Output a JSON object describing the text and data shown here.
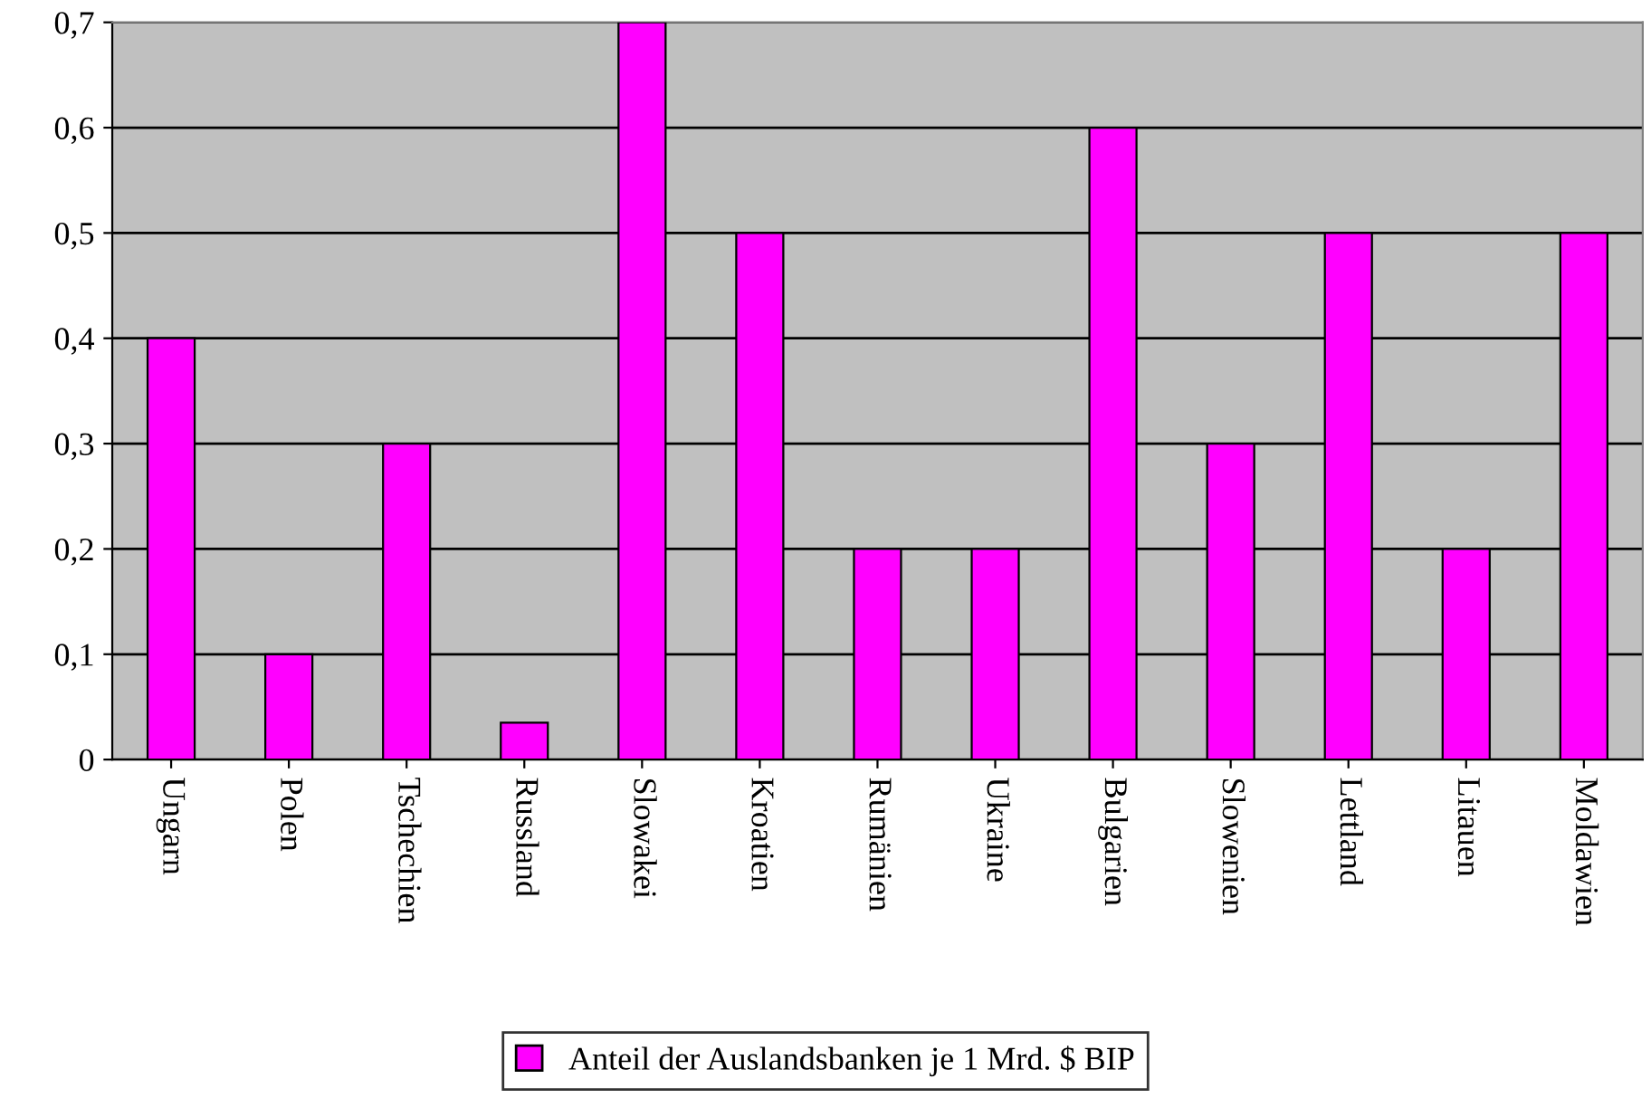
{
  "chart_data": {
    "type": "bar",
    "categories": [
      "Ungarn",
      "Polen",
      "Tschechien",
      "Russland",
      "Slowakei",
      "Kroatien",
      "Rumänien",
      "Ukraine",
      "Bulgarien",
      "Slowenien",
      "Lettland",
      "Litauen",
      "Moldawien"
    ],
    "series": [
      {
        "name": "Anteil der Auslandsbanken je 1 Mrd. $ BIP",
        "color": "#ff00ff",
        "values": [
          0.4,
          0.1,
          0.3,
          0.035,
          0.7,
          0.5,
          0.2,
          0.2,
          0.6,
          0.3,
          0.5,
          0.2,
          0.5
        ]
      }
    ],
    "ylim": [
      0,
      0.7
    ],
    "yticks": [
      0,
      {
        "value": 0.1,
        "label": "0,1"
      },
      {
        "value": 0.2,
        "label": "0,2"
      },
      {
        "value": 0.3,
        "label": "0,3"
      },
      {
        "value": 0.4,
        "label": "0,4"
      },
      {
        "value": 0.5,
        "label": "0,5"
      },
      {
        "value": 0.6,
        "label": "0,6"
      },
      {
        "value": 0.7,
        "label": "0,7"
      }
    ],
    "grid": "y",
    "legend": "bottom"
  }
}
